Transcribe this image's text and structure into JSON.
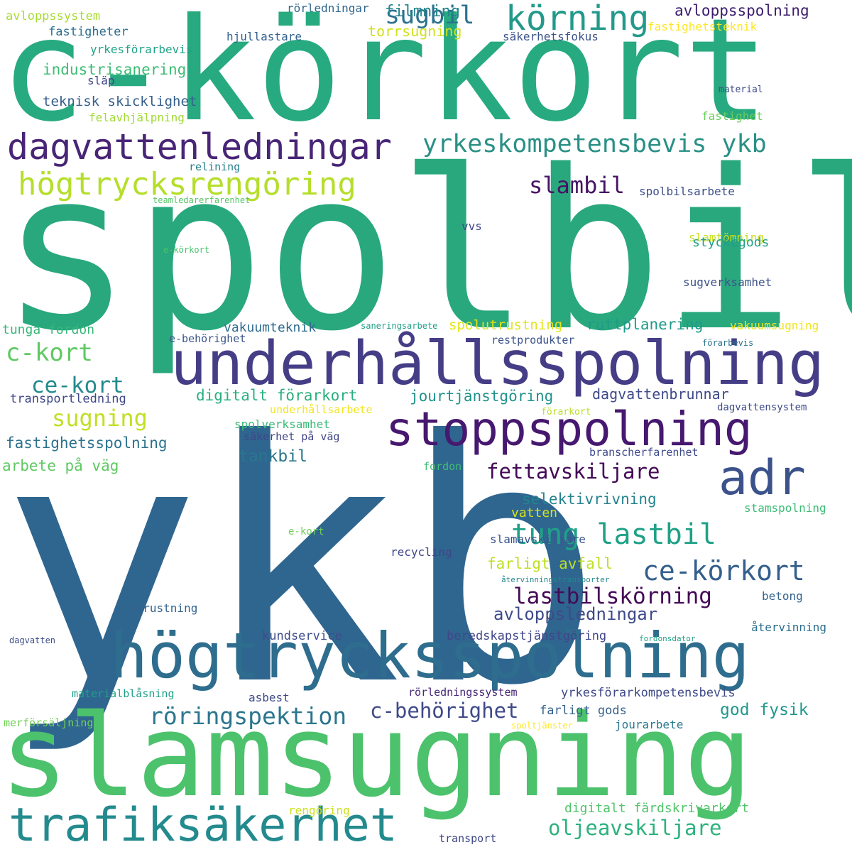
{
  "words": [
    {
      "text": "ykb",
      "color": "#2f6690"
    },
    {
      "text": "spolbil",
      "color": "#29a87e"
    },
    {
      "text": "c-körkort",
      "color": "#27aa80"
    },
    {
      "text": "slamsugning",
      "color": "#4cc26c"
    },
    {
      "text": "underhållsspolning",
      "color": "#453e86"
    },
    {
      "text": "högtrycksspolning",
      "color": "#2e6d8e"
    },
    {
      "text": "trafiksäkerhet",
      "color": "#238a8d"
    },
    {
      "text": "stoppspolning",
      "color": "#46186f"
    },
    {
      "text": "adr",
      "color": "#3b528b"
    },
    {
      "text": "körning",
      "color": "#22998a"
    },
    {
      "text": "dagvattenledningar",
      "color": "#482576"
    },
    {
      "text": "högtrycksrengöring",
      "color": "#b5de2b"
    },
    {
      "text": "yrkeskompetensbevis ykb",
      "color": "#2a9086"
    },
    {
      "text": "tung lastbil",
      "color": "#1fa187"
    },
    {
      "text": "ce-körkort",
      "color": "#345f8d"
    },
    {
      "text": "sugbil",
      "color": "#2c718e"
    },
    {
      "text": "slambil",
      "color": "#471365"
    },
    {
      "text": "c-kort",
      "color": "#5ec962"
    },
    {
      "text": "ce-kort",
      "color": "#238a8d"
    },
    {
      "text": "sugning",
      "color": "#c2df23"
    },
    {
      "text": "fettavskiljare",
      "color": "#440a56"
    },
    {
      "text": "röringspektion",
      "color": "#2a768e"
    },
    {
      "text": "c-behörighet",
      "color": "#3e4a89"
    },
    {
      "text": "oljeavskiljare",
      "color": "#2db27d"
    },
    {
      "text": "lastbilskörning",
      "color": "#450b57"
    },
    {
      "text": "avloppsspolning",
      "color": "#3b1c6e"
    },
    {
      "text": "filmning",
      "color": "#25858e"
    },
    {
      "text": "torrsugning",
      "color": "#d0e11c"
    },
    {
      "text": "industrisanering",
      "color": "#3dbc74"
    },
    {
      "text": "teknisk skicklighet",
      "color": "#355f8d"
    },
    {
      "text": "felavhjälpning",
      "color": "#a2da37"
    },
    {
      "text": "släp",
      "color": "#404387"
    },
    {
      "text": "yrkesförarbevis",
      "color": "#20a386"
    },
    {
      "text": "fastigheter",
      "color": "#2d708e"
    },
    {
      "text": "avloppssystem",
      "color": "#a8db34"
    },
    {
      "text": "rörledningar",
      "color": "#31678e"
    },
    {
      "text": "hjullastare",
      "color": "#34618d"
    },
    {
      "text": "säkerhetsfokus",
      "color": "#3a538b"
    },
    {
      "text": "fastighetsteknik",
      "color": "#fde725"
    },
    {
      "text": "material",
      "color": "#3e4c8a"
    },
    {
      "text": "fastighet",
      "color": "#6ccd5a"
    },
    {
      "text": "relining",
      "color": "#277f8e"
    },
    {
      "text": "teamledarerfarenhet",
      "color": "#56c667"
    },
    {
      "text": "e-körkort",
      "color": "#4ac16d"
    },
    {
      "text": "spolbilsarbete",
      "color": "#3c4f8a"
    },
    {
      "text": "slamtömning",
      "color": "#c8e020"
    },
    {
      "text": "vvs",
      "color": "#3f4889"
    },
    {
      "text": "styckegods",
      "color": "#1f9f88"
    },
    {
      "text": "sugverksamhet",
      "color": "#3b518b"
    },
    {
      "text": "vakuumteknik",
      "color": "#2f6b8e"
    },
    {
      "text": "spolutrustning",
      "color": "#e2e418"
    },
    {
      "text": "ruttplanering",
      "color": "#1e9b8a"
    },
    {
      "text": "vakuumsugning",
      "color": "#efe51c"
    },
    {
      "text": "saneringsarbete",
      "color": "#1f9e89"
    },
    {
      "text": "tunga fordon",
      "color": "#35b779"
    },
    {
      "text": "e-behörighet",
      "color": "#3a548c"
    },
    {
      "text": "restprodukter",
      "color": "#3b528b"
    },
    {
      "text": "förarbevis",
      "color": "#2c738e"
    },
    {
      "text": "digitalt förarkort",
      "color": "#29af7f"
    },
    {
      "text": "jourtjänstgöring",
      "color": "#20928c"
    },
    {
      "text": "dagvattenbrunnar",
      "color": "#3e4989"
    },
    {
      "text": "transportledning",
      "color": "#3f4788"
    },
    {
      "text": "underhållsarbete",
      "color": "#f1e51d"
    },
    {
      "text": "förarkort",
      "color": "#bade28"
    },
    {
      "text": "dagvattensystem",
      "color": "#3e4a89"
    },
    {
      "text": "spolverksamhet",
      "color": "#3aba76"
    },
    {
      "text": "säkerhet på väg",
      "color": "#404588"
    },
    {
      "text": "fastighetsspolning",
      "color": "#2c728e"
    },
    {
      "text": "tankbil",
      "color": "#2a768e"
    },
    {
      "text": "branscherfarenhet",
      "color": "#3e4989"
    },
    {
      "text": "arbete på väg",
      "color": "#5ec962"
    },
    {
      "text": "fordon",
      "color": "#40bd72"
    },
    {
      "text": "selektivrivning",
      "color": "#25838e"
    },
    {
      "text": "vatten",
      "color": "#d8e219"
    },
    {
      "text": "stamspolning",
      "color": "#3cbb75"
    },
    {
      "text": "e-kort",
      "color": "#6ece58"
    },
    {
      "text": "slamavskiljare",
      "color": "#39558c"
    },
    {
      "text": "recycling",
      "color": "#404588"
    },
    {
      "text": "farligt avfall",
      "color": "#bddf26"
    },
    {
      "text": "återvinningstransporter",
      "color": "#24868e"
    },
    {
      "text": "avloppsledningar",
      "color": "#3e4a89"
    },
    {
      "text": "betong",
      "color": "#33638d"
    },
    {
      "text": "utrustning",
      "color": "#33638d"
    },
    {
      "text": "återvinning",
      "color": "#2e6e8e"
    },
    {
      "text": "dagvatten",
      "color": "#3e4c8a"
    },
    {
      "text": "kundservice",
      "color": "#3d4d8a"
    },
    {
      "text": "beredskapstjänstgöring",
      "color": "#404688"
    },
    {
      "text": "fordonsdator",
      "color": "#20a486"
    },
    {
      "text": "god fysik",
      "color": "#1f988b"
    },
    {
      "text": "materialblåsning",
      "color": "#1fa088"
    },
    {
      "text": "asbest",
      "color": "#3e4989"
    },
    {
      "text": "rörledningssystem",
      "color": "#482878"
    },
    {
      "text": "yrkesförarkompetensbevis",
      "color": "#3e4989"
    },
    {
      "text": "farligt gods",
      "color": "#34618d"
    },
    {
      "text": "merförsäljning",
      "color": "#73d056"
    },
    {
      "text": "spoltjänster",
      "color": "#fde725"
    },
    {
      "text": "jourarbete",
      "color": "#2a788e"
    },
    {
      "text": "rengöring",
      "color": "#cde11d"
    },
    {
      "text": "digitalt färdskrivarkort",
      "color": "#50c46a"
    },
    {
      "text": "transport",
      "color": "#3f4788"
    }
  ]
}
